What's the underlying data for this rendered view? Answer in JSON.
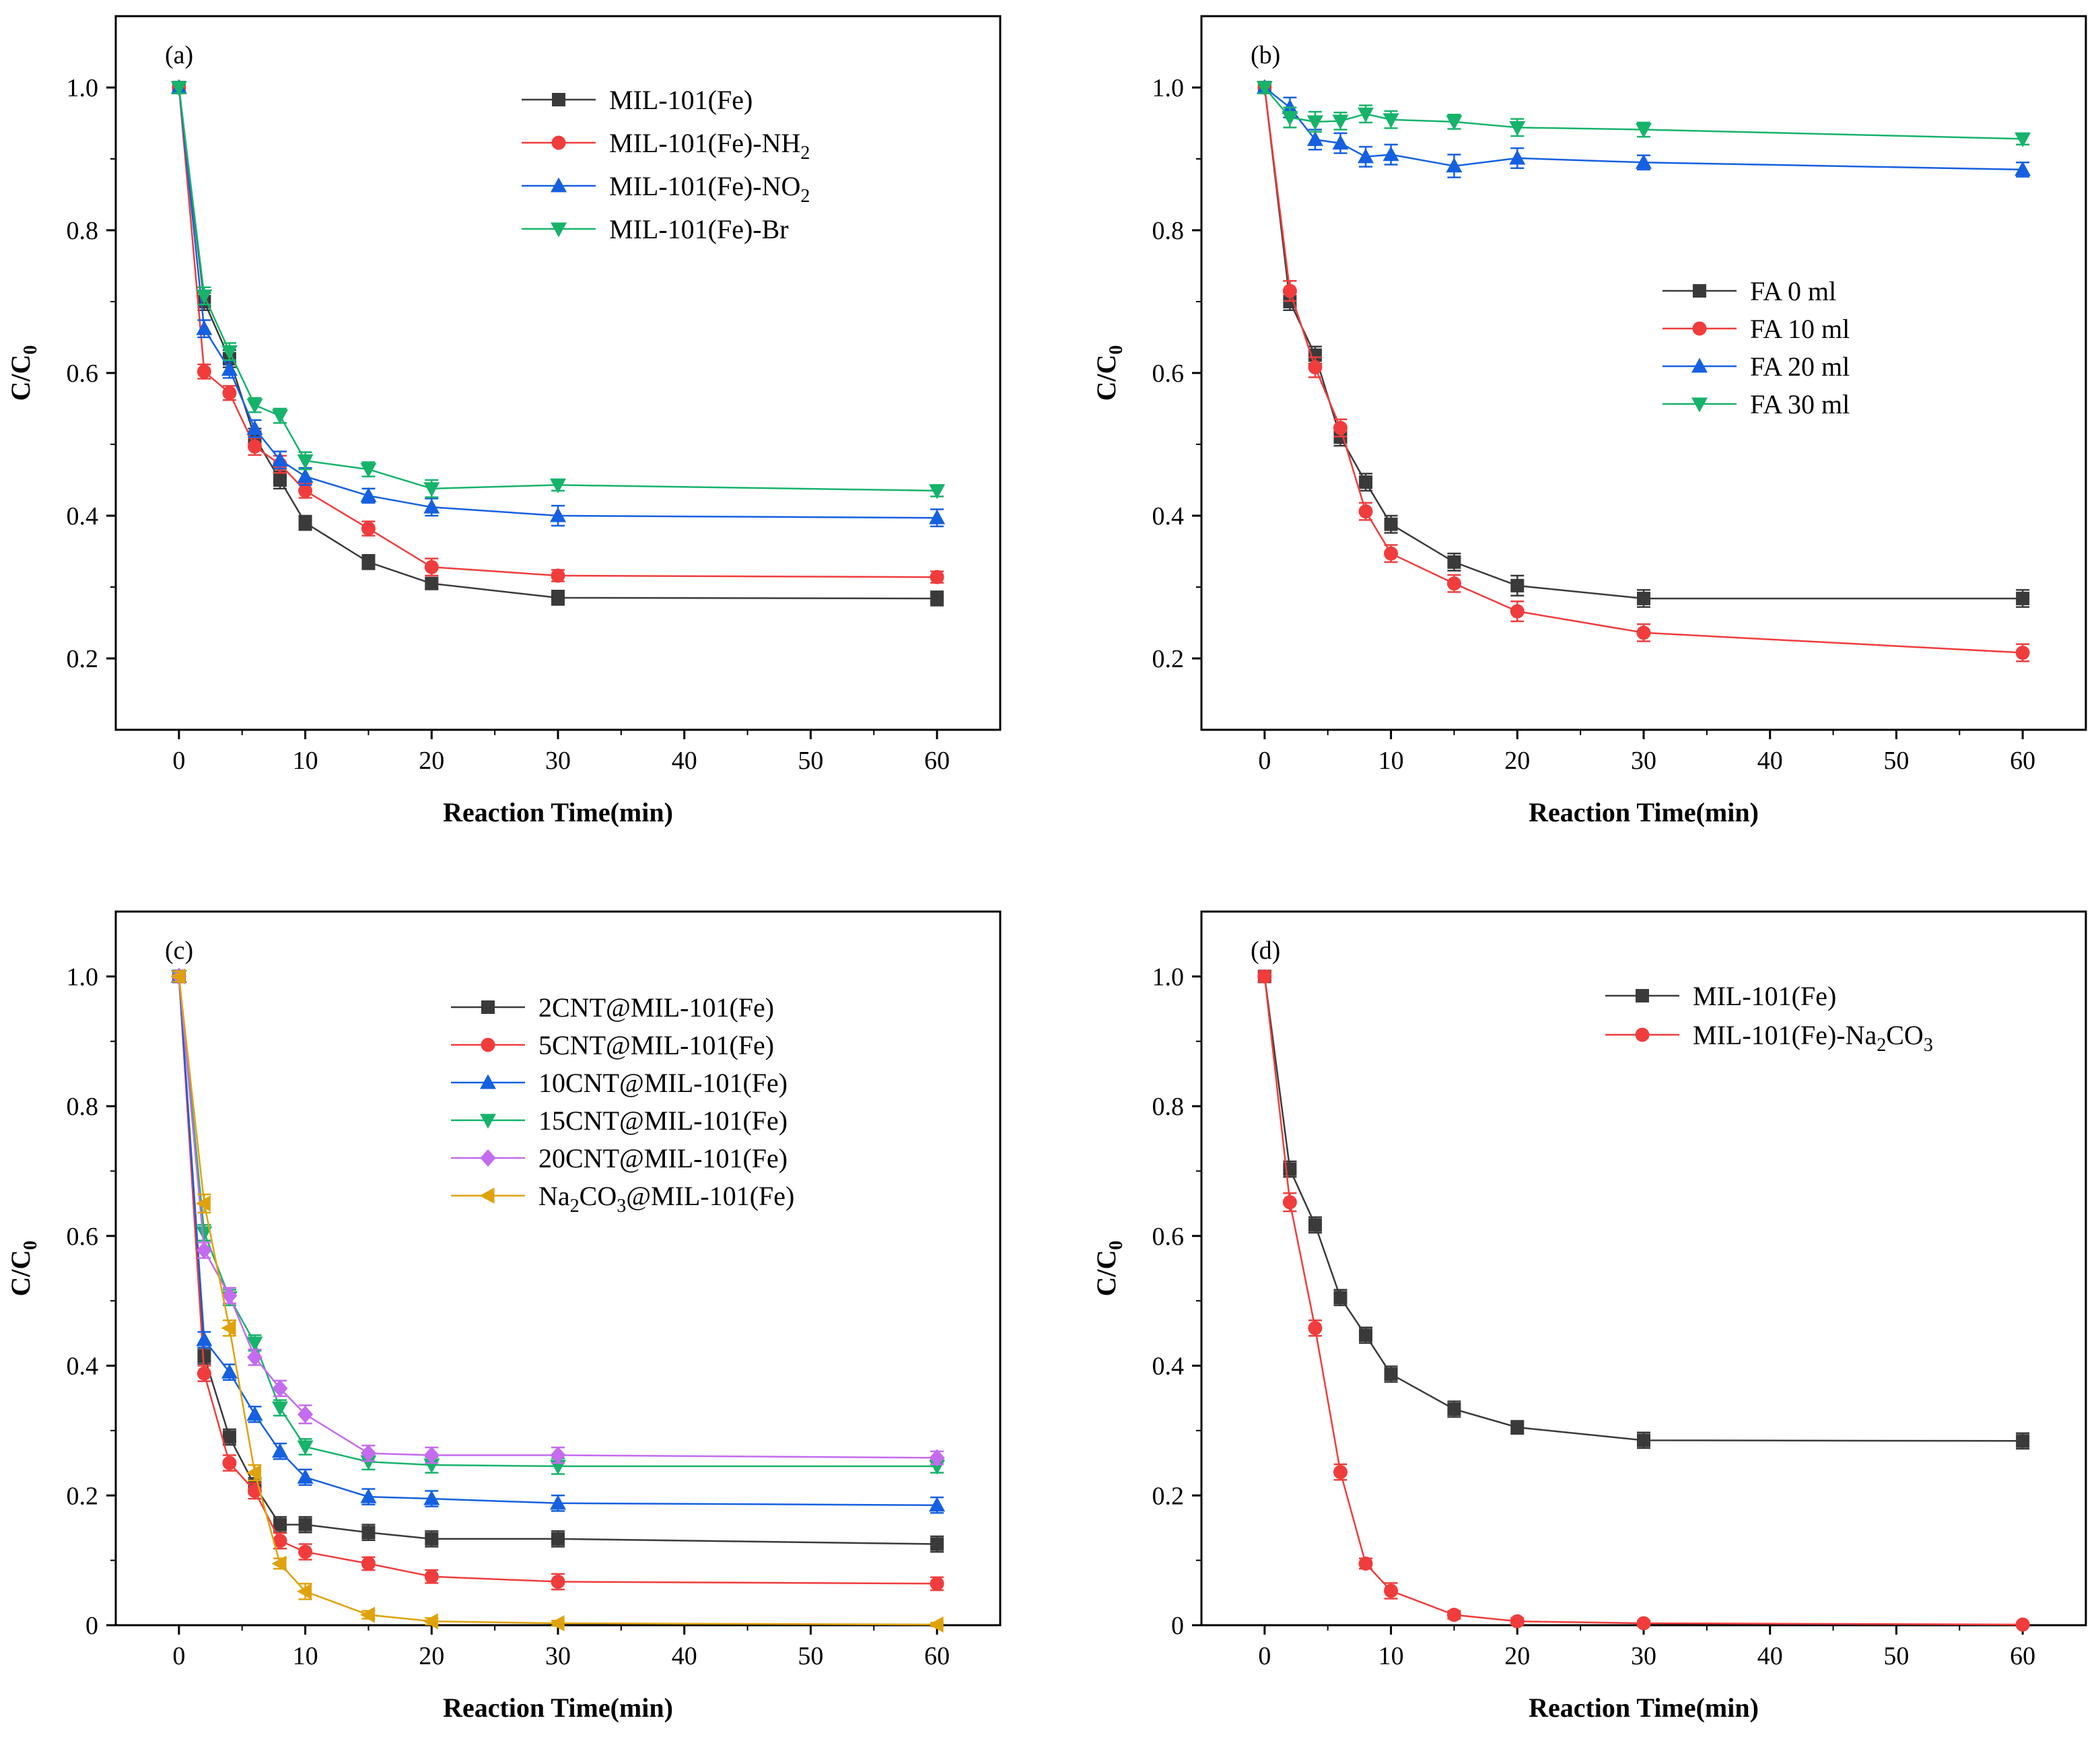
{
  "figure": {
    "colors": {
      "black": "#3a3a3a",
      "red": "#f03c3c",
      "blue": "#1560e0",
      "green": "#16b36a",
      "purple": "#c46bef",
      "gold": "#e0a20c",
      "axis": "#000000"
    }
  },
  "chart_data": [
    {
      "type": "line",
      "panel_label": "(a)",
      "xlabel": "Reaction Time(min)",
      "ylabel": {
        "main": "C/C",
        "sub": "0"
      },
      "xlim": [
        -5,
        65
      ],
      "ylim": [
        0.1,
        1.1
      ],
      "xticks": [
        0,
        10,
        20,
        30,
        40,
        50,
        60
      ],
      "xtick_labels": [
        "0",
        "10",
        "20",
        "30",
        "40",
        "50",
        "60"
      ],
      "yticks": [
        0.2,
        0.4,
        0.6,
        0.8,
        1.0
      ],
      "ytick_labels": [
        "0.2",
        "0.4",
        "0.6",
        "0.8",
        "1.0"
      ],
      "legend_position": "top-right",
      "x": [
        0,
        2,
        4,
        6,
        8,
        10,
        15,
        20,
        30,
        60
      ],
      "series": [
        {
          "name": "MIL-101(Fe)",
          "label_parts": [
            {
              "t": "MIL-101(Fe)"
            }
          ],
          "color": "black",
          "marker": "square",
          "values": [
            1.0,
            0.7,
            0.62,
            0.51,
            0.45,
            0.39,
            0.335,
            0.305,
            0.285,
            0.284
          ],
          "errors": [
            0.008,
            0.012,
            0.012,
            0.012,
            0.012,
            0.01,
            0.01,
            0.008,
            0.01,
            0.01
          ]
        },
        {
          "name": "MIL-101(Fe)-NH2",
          "label_parts": [
            {
              "t": "MIL-101(Fe)-NH"
            },
            {
              "t": "2",
              "sub": true
            }
          ],
          "color": "red",
          "marker": "circle",
          "values": [
            1.0,
            0.602,
            0.572,
            0.497,
            0.472,
            0.435,
            0.382,
            0.328,
            0.316,
            0.314
          ],
          "errors": [
            0.008,
            0.01,
            0.01,
            0.012,
            0.012,
            0.01,
            0.01,
            0.012,
            0.008,
            0.008
          ]
        },
        {
          "name": "MIL-101(Fe)-NO2",
          "label_parts": [
            {
              "t": "MIL-101(Fe)-NO"
            },
            {
              "t": "2",
              "sub": true
            }
          ],
          "color": "blue",
          "marker": "triangle-up",
          "values": [
            1.0,
            0.662,
            0.605,
            0.522,
            0.478,
            0.455,
            0.428,
            0.412,
            0.4,
            0.397
          ],
          "errors": [
            0.008,
            0.012,
            0.012,
            0.012,
            0.012,
            0.012,
            0.01,
            0.012,
            0.014,
            0.012
          ]
        },
        {
          "name": "MIL-101(Fe)-Br",
          "label_parts": [
            {
              "t": "MIL-101(Fe)-Br"
            }
          ],
          "color": "green",
          "marker": "triangle-down",
          "values": [
            1.0,
            0.708,
            0.63,
            0.555,
            0.54,
            0.477,
            0.465,
            0.438,
            0.443,
            0.435
          ],
          "errors": [
            0.008,
            0.012,
            0.012,
            0.01,
            0.01,
            0.012,
            0.01,
            0.012,
            0.008,
            0.008
          ]
        }
      ]
    },
    {
      "type": "line",
      "panel_label": "(b)",
      "xlabel": "Reaction Time(min)",
      "ylabel": {
        "main": "C/C",
        "sub": "0"
      },
      "xlim": [
        -5,
        65
      ],
      "ylim": [
        0.1,
        1.1
      ],
      "xticks": [
        0,
        10,
        20,
        30,
        40,
        50,
        60
      ],
      "xtick_labels": [
        "0",
        "10",
        "20",
        "30",
        "40",
        "50",
        "60"
      ],
      "yticks": [
        0.2,
        0.4,
        0.6,
        0.8,
        1.0
      ],
      "ytick_labels": [
        "0.2",
        "0.4",
        "0.6",
        "0.8",
        "1.0"
      ],
      "legend_position": "center-right",
      "x": [
        0,
        2,
        4,
        6,
        8,
        10,
        15,
        20,
        30,
        60
      ],
      "series": [
        {
          "name": "FA 0 ml",
          "label_parts": [
            {
              "t": "FA 0 ml"
            }
          ],
          "color": "black",
          "marker": "square",
          "values": [
            1.0,
            0.7,
            0.625,
            0.51,
            0.447,
            0.388,
            0.335,
            0.302,
            0.284,
            0.284
          ],
          "errors": [
            0.008,
            0.012,
            0.012,
            0.012,
            0.012,
            0.012,
            0.012,
            0.014,
            0.012,
            0.012
          ]
        },
        {
          "name": "FA 10 ml",
          "label_parts": [
            {
              "t": "FA 10 ml"
            }
          ],
          "color": "red",
          "marker": "circle",
          "values": [
            1.0,
            0.715,
            0.608,
            0.523,
            0.406,
            0.347,
            0.305,
            0.266,
            0.236,
            0.208
          ],
          "errors": [
            0.008,
            0.014,
            0.014,
            0.012,
            0.012,
            0.012,
            0.012,
            0.014,
            0.012,
            0.012
          ]
        },
        {
          "name": "FA 20 ml",
          "label_parts": [
            {
              "t": "FA 20 ml"
            }
          ],
          "color": "blue",
          "marker": "triangle-up",
          "values": [
            1.0,
            0.972,
            0.927,
            0.922,
            0.903,
            0.906,
            0.89,
            0.901,
            0.895,
            0.885
          ],
          "errors": [
            0.008,
            0.014,
            0.014,
            0.014,
            0.014,
            0.014,
            0.016,
            0.014,
            0.01,
            0.01
          ]
        },
        {
          "name": "FA 30 ml",
          "label_parts": [
            {
              "t": "FA 30 ml"
            }
          ],
          "color": "green",
          "marker": "triangle-down",
          "values": [
            1.0,
            0.958,
            0.952,
            0.953,
            0.963,
            0.955,
            0.952,
            0.944,
            0.941,
            0.928
          ],
          "errors": [
            0.008,
            0.014,
            0.014,
            0.012,
            0.012,
            0.012,
            0.01,
            0.012,
            0.01,
            0.008
          ]
        }
      ]
    },
    {
      "type": "line",
      "panel_label": "(c)",
      "xlabel": "Reaction Time(min)",
      "ylabel": {
        "main": "C/C",
        "sub": "0"
      },
      "xlim": [
        -5,
        65
      ],
      "ylim": [
        0,
        1.1
      ],
      "xticks": [
        0,
        10,
        20,
        30,
        40,
        50,
        60
      ],
      "xtick_labels": [
        "0",
        "10",
        "20",
        "30",
        "40",
        "50",
        "60"
      ],
      "yticks": [
        0,
        0.2,
        0.4,
        0.6,
        0.8,
        1.0
      ],
      "ytick_labels": [
        "0",
        "0.2",
        "0.4",
        "0.6",
        "0.8",
        "1.0"
      ],
      "legend_position": "top-right",
      "x": [
        0,
        2,
        4,
        6,
        8,
        10,
        15,
        20,
        30,
        60
      ],
      "series": [
        {
          "name": "2CNT@MIL-101(Fe)",
          "label_parts": [
            {
              "t": "2CNT@MIL-101(Fe)"
            }
          ],
          "color": "black",
          "marker": "square",
          "values": [
            1.0,
            0.415,
            0.29,
            0.215,
            0.155,
            0.155,
            0.143,
            0.133,
            0.133,
            0.125
          ],
          "errors": [
            0.008,
            0.012,
            0.012,
            0.012,
            0.012,
            0.012,
            0.012,
            0.012,
            0.012,
            0.012
          ]
        },
        {
          "name": "5CNT@MIL-101(Fe)",
          "label_parts": [
            {
              "t": "5CNT@MIL-101(Fe)"
            }
          ],
          "color": "red",
          "marker": "circle",
          "values": [
            1.0,
            0.388,
            0.25,
            0.207,
            0.13,
            0.113,
            0.095,
            0.075,
            0.067,
            0.064
          ],
          "errors": [
            0.008,
            0.012,
            0.012,
            0.012,
            0.012,
            0.012,
            0.01,
            0.01,
            0.012,
            0.01
          ]
        },
        {
          "name": "10CNT@MIL-101(Fe)",
          "label_parts": [
            {
              "t": "10CNT@MIL-101(Fe)"
            }
          ],
          "color": "blue",
          "marker": "triangle-up",
          "values": [
            1.0,
            0.44,
            0.39,
            0.325,
            0.268,
            0.228,
            0.198,
            0.195,
            0.188,
            0.185
          ],
          "errors": [
            0.008,
            0.012,
            0.012,
            0.012,
            0.012,
            0.012,
            0.012,
            0.012,
            0.012,
            0.012
          ]
        },
        {
          "name": "15CNT@MIL-101(Fe)",
          "label_parts": [
            {
              "t": "15CNT@MIL-101(Fe)"
            }
          ],
          "color": "green",
          "marker": "triangle-down",
          "values": [
            1.0,
            0.605,
            0.505,
            0.435,
            0.335,
            0.275,
            0.252,
            0.247,
            0.245,
            0.245
          ],
          "errors": [
            0.008,
            0.012,
            0.012,
            0.012,
            0.012,
            0.012,
            0.012,
            0.012,
            0.012,
            0.01
          ]
        },
        {
          "name": "20CNT@MIL-101(Fe)",
          "label_parts": [
            {
              "t": "20CNT@MIL-101(Fe)"
            }
          ],
          "color": "purple",
          "marker": "diamond",
          "values": [
            1.0,
            0.578,
            0.508,
            0.413,
            0.365,
            0.325,
            0.265,
            0.262,
            0.262,
            0.258
          ],
          "errors": [
            0.008,
            0.012,
            0.012,
            0.012,
            0.012,
            0.014,
            0.012,
            0.012,
            0.012,
            0.01
          ]
        },
        {
          "name": "Na2CO3@MIL-101(Fe)",
          "label_parts": [
            {
              "t": "Na"
            },
            {
              "t": "2",
              "sub": true
            },
            {
              "t": "CO"
            },
            {
              "t": "3",
              "sub": true
            },
            {
              "t": "@MIL-101(Fe)"
            }
          ],
          "color": "gold",
          "marker": "triangle-left",
          "values": [
            1.0,
            0.65,
            0.458,
            0.235,
            0.095,
            0.052,
            0.016,
            0.006,
            0.003,
            0.001
          ],
          "errors": [
            0.008,
            0.014,
            0.012,
            0.012,
            0.008,
            0.012,
            0.006,
            0.005,
            0.004,
            0.003
          ]
        }
      ]
    },
    {
      "type": "line",
      "panel_label": "(d)",
      "xlabel": "Reaction Time(min)",
      "ylabel": {
        "main": "C/C",
        "sub": "0"
      },
      "xlim": [
        -5,
        65
      ],
      "ylim": [
        0,
        1.1
      ],
      "xticks": [
        0,
        10,
        20,
        30,
        40,
        50,
        60
      ],
      "xtick_labels": [
        "0",
        "10",
        "20",
        "30",
        "40",
        "50",
        "60"
      ],
      "yticks": [
        0,
        0.2,
        0.4,
        0.6,
        0.8,
        1.0
      ],
      "ytick_labels": [
        "0",
        "0.2",
        "0.4",
        "0.6",
        "0.8",
        "1.0"
      ],
      "legend_position": "top-right",
      "x": [
        0,
        2,
        4,
        6,
        8,
        10,
        15,
        20,
        30,
        60
      ],
      "series": [
        {
          "name": "MIL-101(Fe)",
          "label_parts": [
            {
              "t": "MIL-101(Fe)"
            }
          ],
          "color": "black",
          "marker": "square",
          "values": [
            1.0,
            0.703,
            0.617,
            0.505,
            0.447,
            0.387,
            0.333,
            0.305,
            0.285,
            0.284
          ],
          "errors": [
            0.008,
            0.012,
            0.012,
            0.012,
            0.012,
            0.012,
            0.012,
            0.01,
            0.012,
            0.012
          ]
        },
        {
          "name": "MIL-101(Fe)-Na2CO3",
          "label_parts": [
            {
              "t": "MIL-101(Fe)-Na"
            },
            {
              "t": "2",
              "sub": true
            },
            {
              "t": "CO"
            },
            {
              "t": "3",
              "sub": true
            }
          ],
          "color": "red",
          "marker": "circle",
          "values": [
            1.0,
            0.652,
            0.458,
            0.236,
            0.095,
            0.053,
            0.016,
            0.006,
            0.003,
            0.001
          ],
          "errors": [
            0.008,
            0.014,
            0.012,
            0.012,
            0.008,
            0.012,
            0.006,
            0.005,
            0.004,
            0.003
          ]
        }
      ]
    }
  ]
}
